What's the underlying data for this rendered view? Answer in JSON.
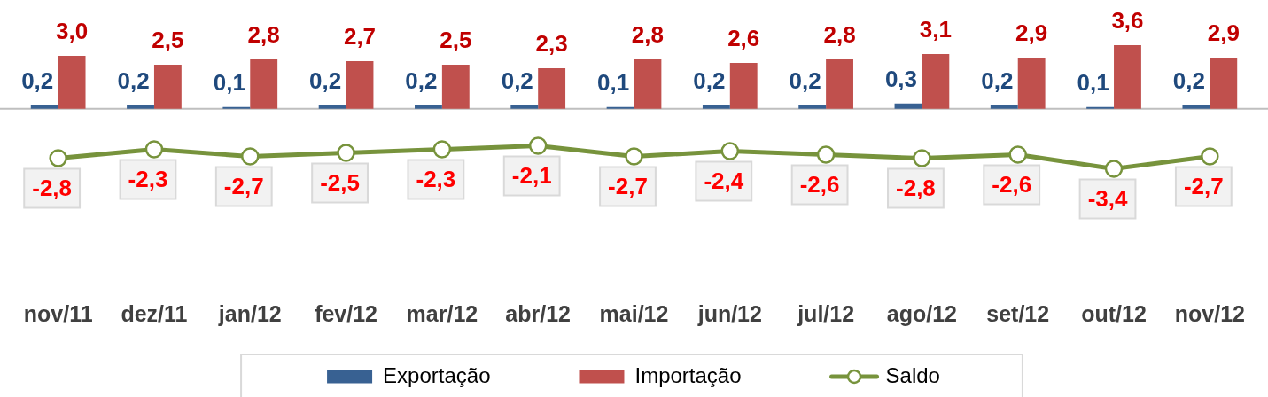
{
  "chart_data": {
    "type": "bar",
    "categories": [
      "nov/11",
      "dez/11",
      "jan/12",
      "fev/12",
      "mar/12",
      "abr/12",
      "mai/12",
      "jun/12",
      "jul/12",
      "ago/12",
      "set/12",
      "out/12",
      "nov/12"
    ],
    "series": [
      {
        "name": "Exportação",
        "color": "#386192",
        "values": [
          0.2,
          0.2,
          0.1,
          0.2,
          0.2,
          0.2,
          0.1,
          0.2,
          0.2,
          0.3,
          0.2,
          0.1,
          0.2
        ],
        "value_labels": [
          "0,2",
          "0,2",
          "0,1",
          "0,2",
          "0,2",
          "0,2",
          "0,1",
          "0,2",
          "0,2",
          "0,3",
          "0,2",
          "0,1",
          "0,2"
        ]
      },
      {
        "name": "Importação",
        "color": "#c0504d",
        "values": [
          3.0,
          2.5,
          2.8,
          2.7,
          2.5,
          2.3,
          2.8,
          2.6,
          2.8,
          3.1,
          2.9,
          3.6,
          2.9
        ],
        "value_labels": [
          "3,0",
          "2,5",
          "2,8",
          "2,7",
          "2,5",
          "2,3",
          "2,8",
          "2,6",
          "2,8",
          "3,1",
          "2,9",
          "3,6",
          "2,9"
        ]
      },
      {
        "name": "Saldo",
        "type": "line",
        "color": "#77933c",
        "values": [
          -2.8,
          -2.3,
          -2.7,
          -2.5,
          -2.3,
          -2.1,
          -2.7,
          -2.4,
          -2.6,
          -2.8,
          -2.6,
          -3.4,
          -2.7
        ],
        "value_labels": [
          "-2,8",
          "-2,3",
          "-2,7",
          "-2,5",
          "-2,3",
          "-2,1",
          "-2,7",
          "-2,4",
          "-2,6",
          "-2,8",
          "-2,6",
          "-3,4",
          "-2,7"
        ]
      }
    ],
    "marker": "circle",
    "legend": "bottom",
    "tick_labels": "x"
  }
}
